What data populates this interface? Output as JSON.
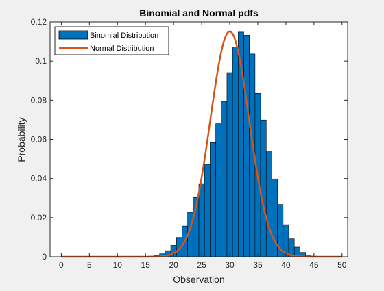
{
  "chart_data": {
    "type": "bar",
    "title": "Binomial and Normal pdfs",
    "xlabel": "Observation",
    "ylabel": "Probability",
    "xlim": [
      -2,
      51
    ],
    "ylim": [
      0,
      0.12
    ],
    "xticks": [
      0,
      5,
      10,
      15,
      20,
      25,
      30,
      35,
      40,
      45,
      50
    ],
    "xtick_labels": [
      "0",
      "5",
      "10",
      "15",
      "20",
      "25",
      "30",
      "35",
      "40",
      "45",
      "50"
    ],
    "yticks": [
      0,
      0.02,
      0.04,
      0.06,
      0.08,
      0.1,
      0.12
    ],
    "ytick_labels": [
      "0",
      "0.02",
      "0.04",
      "0.06",
      "0.08",
      "0.1",
      "0.12"
    ],
    "legend_position": "top-left",
    "grid": false,
    "series": [
      {
        "name": "Binomial Distribution",
        "kind": "bar",
        "color": "#0072bd",
        "x": [
          0,
          1,
          2,
          3,
          4,
          5,
          6,
          7,
          8,
          9,
          10,
          11,
          12,
          13,
          14,
          15,
          16,
          17,
          18,
          19,
          20,
          21,
          22,
          23,
          24,
          25,
          26,
          27,
          28,
          29,
          30,
          31,
          32,
          33,
          34,
          35,
          36,
          37,
          38,
          39,
          40,
          41,
          42,
          43,
          44,
          45,
          46,
          47,
          48,
          49,
          50
        ],
        "values": [
          0,
          0,
          0,
          0,
          0,
          0,
          0,
          0,
          0,
          0,
          0,
          0,
          0,
          0,
          0,
          0.0001,
          0.0003,
          0.0007,
          0.0015,
          0.0031,
          0.0058,
          0.0099,
          0.0157,
          0.0227,
          0.0303,
          0.0374,
          0.0472,
          0.0583,
          0.068,
          0.0794,
          0.0941,
          0.1072,
          0.1148,
          0.1132,
          0.1036,
          0.0835,
          0.0699,
          0.054,
          0.0398,
          0.0267,
          0.0164,
          0.0092,
          0.0049,
          0.0022,
          0.0009,
          0.0003,
          0.0001,
          0,
          0,
          0,
          0
        ]
      },
      {
        "name": "Normal Distribution",
        "kind": "line",
        "color": "#d95319",
        "mean": 30,
        "sd": 3.4641
      }
    ]
  }
}
